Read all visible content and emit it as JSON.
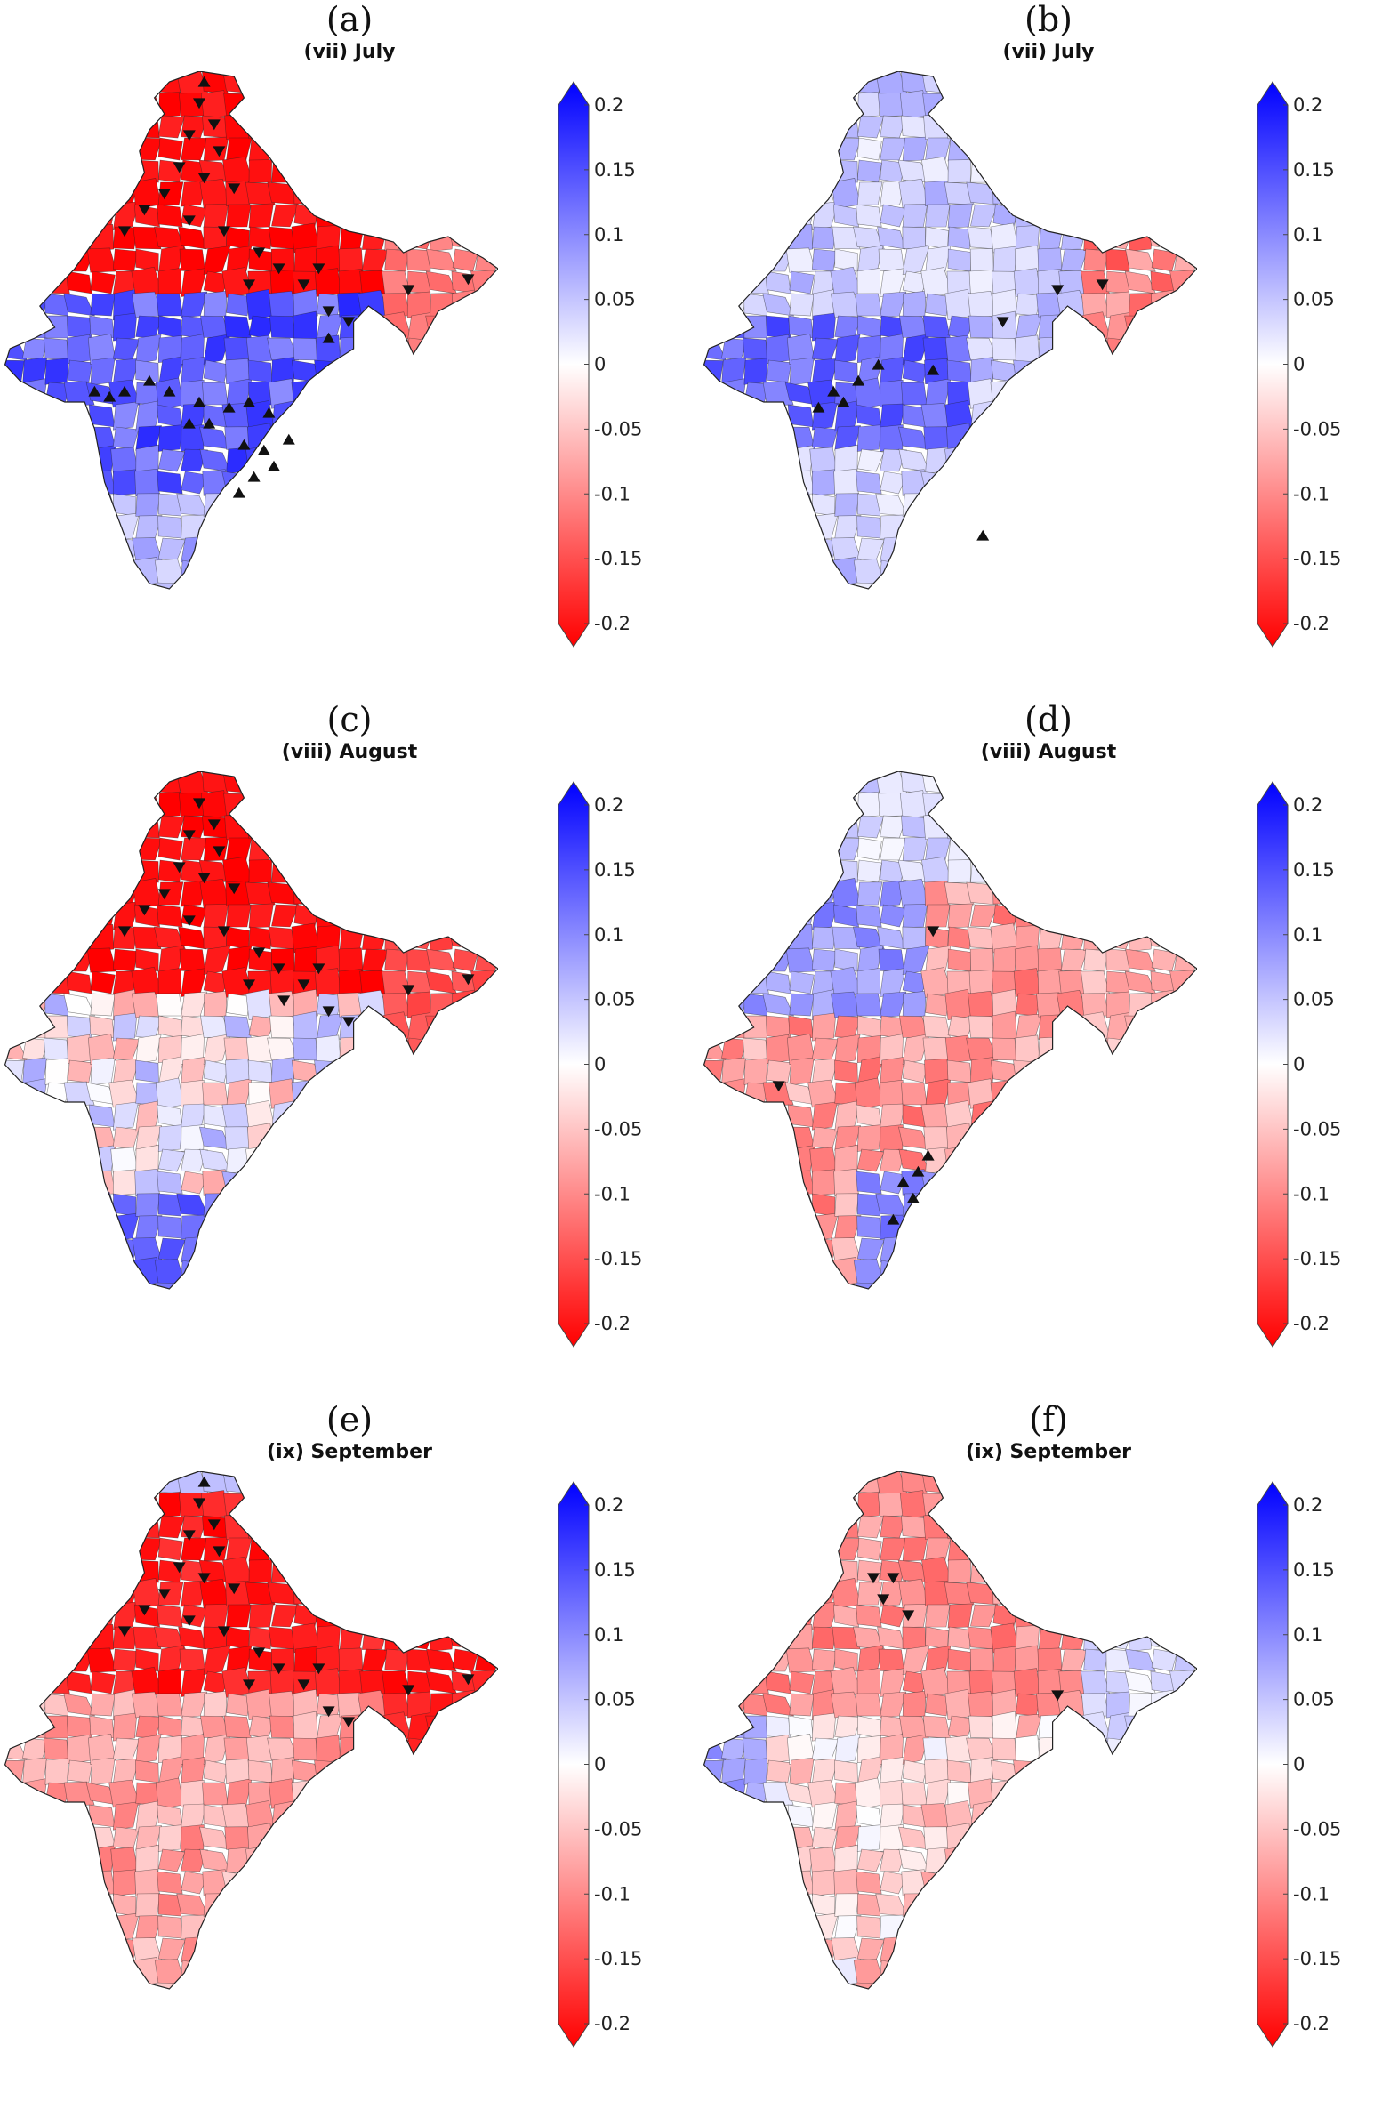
{
  "figure": {
    "panels": [
      {
        "letter": "(a)",
        "title": "(vii) July",
        "profile": "a",
        "down_markers": [
          [
            0.4,
            0.06
          ],
          [
            0.43,
            0.1
          ],
          [
            0.38,
            0.12
          ],
          [
            0.44,
            0.15
          ],
          [
            0.36,
            0.18
          ],
          [
            0.41,
            0.2
          ],
          [
            0.47,
            0.22
          ],
          [
            0.33,
            0.23
          ],
          [
            0.29,
            0.26
          ],
          [
            0.25,
            0.3
          ],
          [
            0.38,
            0.28
          ],
          [
            0.45,
            0.3
          ],
          [
            0.52,
            0.34
          ],
          [
            0.56,
            0.37
          ],
          [
            0.61,
            0.4
          ],
          [
            0.5,
            0.4
          ],
          [
            0.82,
            0.41
          ],
          [
            0.94,
            0.39
          ],
          [
            0.66,
            0.45
          ],
          [
            0.7,
            0.47
          ],
          [
            0.64,
            0.37
          ]
        ],
        "up_markers": [
          [
            0.3,
            0.58
          ],
          [
            0.34,
            0.6
          ],
          [
            0.22,
            0.61
          ],
          [
            0.19,
            0.6
          ],
          [
            0.25,
            0.6
          ],
          [
            0.4,
            0.62
          ],
          [
            0.46,
            0.63
          ],
          [
            0.5,
            0.62
          ],
          [
            0.54,
            0.64
          ],
          [
            0.42,
            0.66
          ],
          [
            0.38,
            0.66
          ],
          [
            0.58,
            0.69
          ],
          [
            0.53,
            0.71
          ],
          [
            0.49,
            0.7
          ],
          [
            0.55,
            0.74
          ],
          [
            0.51,
            0.76
          ],
          [
            0.48,
            0.79
          ],
          [
            0.66,
            0.5
          ],
          [
            0.41,
            0.02
          ]
        ]
      },
      {
        "letter": "(b)",
        "title": "(vii) July",
        "profile": "b",
        "down_markers": [
          [
            0.72,
            0.41
          ],
          [
            0.81,
            0.4
          ],
          [
            0.61,
            0.47
          ]
        ],
        "up_markers": [
          [
            0.36,
            0.55
          ],
          [
            0.32,
            0.58
          ],
          [
            0.27,
            0.6
          ],
          [
            0.29,
            0.62
          ],
          [
            0.24,
            0.63
          ],
          [
            0.47,
            0.56
          ],
          [
            0.57,
            0.87
          ]
        ]
      },
      {
        "letter": "(c)",
        "title": "(viii) August",
        "profile": "c",
        "down_markers": [
          [
            0.4,
            0.06
          ],
          [
            0.43,
            0.1
          ],
          [
            0.38,
            0.12
          ],
          [
            0.44,
            0.15
          ],
          [
            0.36,
            0.18
          ],
          [
            0.41,
            0.2
          ],
          [
            0.47,
            0.22
          ],
          [
            0.33,
            0.23
          ],
          [
            0.29,
            0.26
          ],
          [
            0.25,
            0.3
          ],
          [
            0.38,
            0.28
          ],
          [
            0.45,
            0.3
          ],
          [
            0.52,
            0.34
          ],
          [
            0.56,
            0.37
          ],
          [
            0.61,
            0.4
          ],
          [
            0.5,
            0.4
          ],
          [
            0.82,
            0.41
          ],
          [
            0.94,
            0.39
          ],
          [
            0.66,
            0.45
          ],
          [
            0.7,
            0.47
          ],
          [
            0.64,
            0.37
          ],
          [
            0.57,
            0.43
          ]
        ],
        "up_markers": []
      },
      {
        "letter": "(d)",
        "title": "(viii) August",
        "profile": "d",
        "down_markers": [
          [
            0.47,
            0.3
          ],
          [
            0.16,
            0.59
          ]
        ],
        "up_markers": [
          [
            0.46,
            0.72
          ],
          [
            0.44,
            0.75
          ],
          [
            0.41,
            0.77
          ],
          [
            0.43,
            0.8
          ],
          [
            0.39,
            0.84
          ]
        ]
      },
      {
        "letter": "(e)",
        "title": "(ix) September",
        "profile": "e",
        "down_markers": [
          [
            0.4,
            0.06
          ],
          [
            0.43,
            0.1
          ],
          [
            0.38,
            0.12
          ],
          [
            0.44,
            0.15
          ],
          [
            0.36,
            0.18
          ],
          [
            0.41,
            0.2
          ],
          [
            0.47,
            0.22
          ],
          [
            0.33,
            0.23
          ],
          [
            0.29,
            0.26
          ],
          [
            0.25,
            0.3
          ],
          [
            0.38,
            0.28
          ],
          [
            0.45,
            0.3
          ],
          [
            0.52,
            0.34
          ],
          [
            0.56,
            0.37
          ],
          [
            0.61,
            0.4
          ],
          [
            0.5,
            0.4
          ],
          [
            0.82,
            0.41
          ],
          [
            0.94,
            0.39
          ],
          [
            0.66,
            0.45
          ],
          [
            0.7,
            0.47
          ],
          [
            0.64,
            0.37
          ]
        ],
        "up_markers": [
          [
            0.41,
            0.02
          ]
        ]
      },
      {
        "letter": "(f)",
        "title": "(ix) September",
        "profile": "f",
        "down_markers": [
          [
            0.35,
            0.2
          ],
          [
            0.39,
            0.2
          ],
          [
            0.37,
            0.24
          ],
          [
            0.42,
            0.27
          ],
          [
            0.72,
            0.42
          ]
        ],
        "up_markers": []
      }
    ],
    "colorbar": {
      "ticks": [
        "0.2",
        "0.15",
        "0.1",
        "0.05",
        "0",
        "-0.05",
        "-0.1",
        "-0.15",
        "-0.2"
      ],
      "min": -0.2,
      "max": 0.2,
      "color_high": "#0000ff",
      "color_mid": "#ffffff",
      "color_low": "#ff0000"
    },
    "marker_color": "#111111",
    "outline_color": "#222222"
  }
}
